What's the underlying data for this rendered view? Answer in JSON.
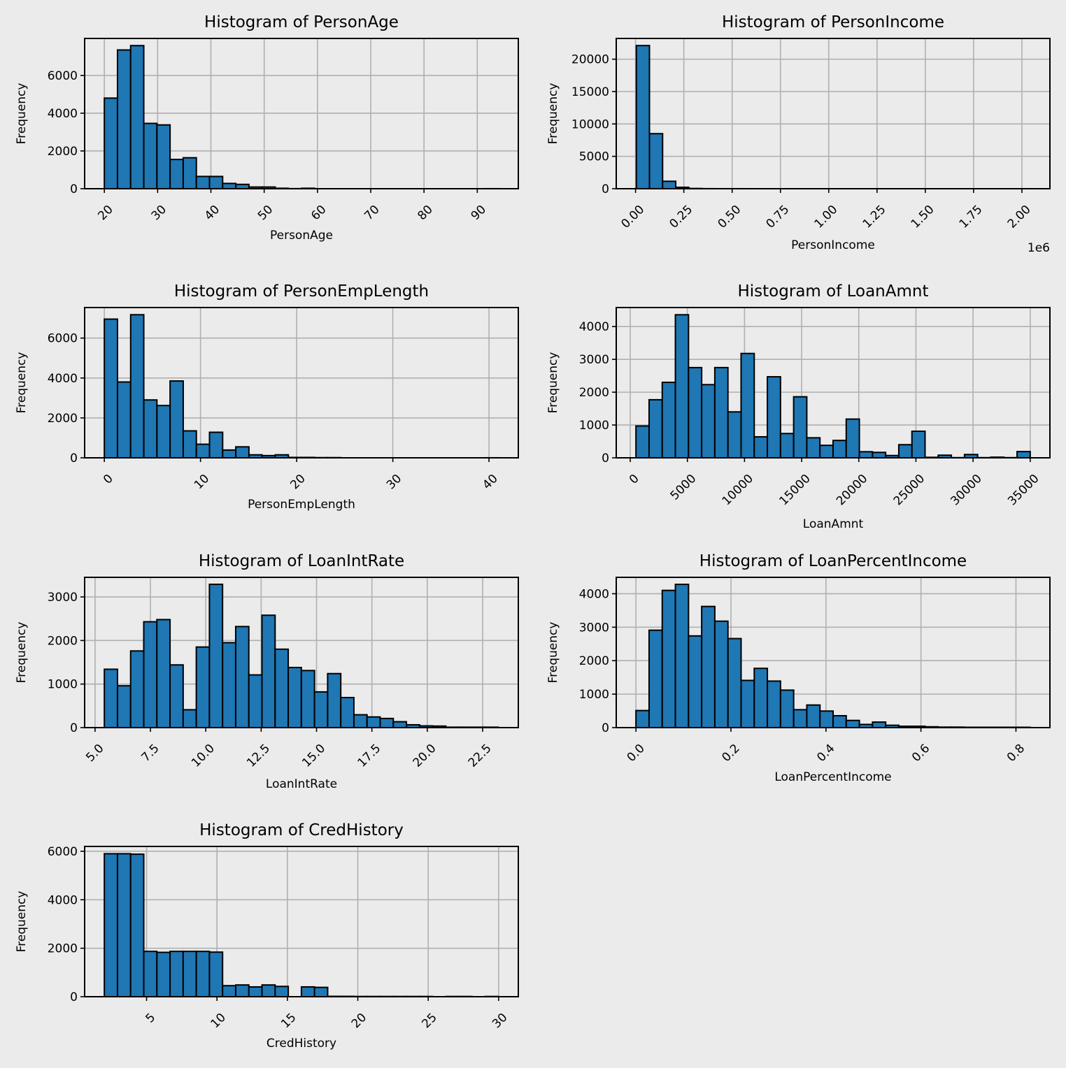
{
  "figure": {
    "background": "#ebebeb",
    "bar_color": "#1f77b4",
    "edge_color": "#000000",
    "grid_color": "#b0b0b0"
  },
  "chart_data": [
    {
      "type": "bar",
      "title": "Histogram of PersonAge",
      "xlabel": "PersonAge",
      "ylabel": "Frequency",
      "x_offset_label": "",
      "xlim": [
        16.3,
        97.7
      ],
      "ylim": [
        0,
        7960
      ],
      "xticks": [
        20,
        30,
        40,
        50,
        60,
        70,
        80,
        90
      ],
      "xtick_labels": [
        "20",
        "30",
        "40",
        "50",
        "60",
        "70",
        "80",
        "90"
      ],
      "yticks": [
        0,
        2000,
        4000,
        6000
      ],
      "ytick_labels": [
        "0",
        "2000",
        "4000",
        "6000"
      ],
      "bin_start": 20,
      "bin_width": 2.467,
      "values": [
        4800,
        7350,
        7580,
        3460,
        3380,
        1550,
        1640,
        650,
        650,
        280,
        230,
        90,
        90,
        25,
        5,
        25,
        0,
        0,
        0,
        0,
        0,
        0,
        0,
        0,
        0,
        0,
        0,
        0,
        0,
        3
      ],
      "grid": true
    },
    {
      "type": "bar",
      "title": "Histogram of PersonIncome",
      "xlabel": "PersonIncome",
      "ylabel": "Frequency",
      "x_offset_label": "1e6",
      "xlim": [
        -0.1,
        2.145
      ],
      "ylim": [
        0,
        23200
      ],
      "xticks": [
        0,
        0.25,
        0.5,
        0.75,
        1.0,
        1.25,
        1.5,
        1.75,
        2.0
      ],
      "xtick_labels": [
        "0.00",
        "0.25",
        "0.50",
        "0.75",
        "1.00",
        "1.25",
        "1.50",
        "1.75",
        "2.00"
      ],
      "yticks": [
        0,
        5000,
        10000,
        15000,
        20000
      ],
      "ytick_labels": [
        "0",
        "5000",
        "10000",
        "15000",
        "20000"
      ],
      "bin_start": 0.004,
      "bin_width": 0.068,
      "values": [
        22100,
        8500,
        1150,
        220,
        40,
        10,
        5,
        3,
        2,
        1,
        1,
        1,
        0,
        0,
        0,
        0,
        0,
        0,
        0,
        0,
        0,
        0,
        0,
        0,
        0,
        0,
        0,
        0,
        0,
        1
      ],
      "grid": true
    },
    {
      "type": "bar",
      "title": "Histogram of PersonEmpLength",
      "xlabel": "PersonEmpLength",
      "ylabel": "Frequency",
      "x_offset_label": "",
      "xlim": [
        -2.05,
        43.05
      ],
      "ylim": [
        0,
        7530
      ],
      "xticks": [
        0,
        10,
        20,
        30,
        40
      ],
      "xtick_labels": [
        "0",
        "10",
        "20",
        "30",
        "40"
      ],
      "yticks": [
        0,
        2000,
        4000,
        6000
      ],
      "ytick_labels": [
        "0",
        "2000",
        "4000",
        "6000"
      ],
      "bin_start": 0,
      "bin_width": 1.367,
      "values": [
        6950,
        3800,
        7170,
        2900,
        2620,
        3850,
        1350,
        680,
        1280,
        390,
        550,
        150,
        110,
        150,
        20,
        20,
        10,
        10,
        0,
        0,
        0,
        0,
        0,
        0,
        0,
        0,
        0,
        0,
        0,
        2
      ],
      "grid": true
    },
    {
      "type": "bar",
      "title": "Histogram of LoanAmnt",
      "xlabel": "LoanAmnt",
      "ylabel": "Frequency",
      "x_offset_label": "",
      "xlim": [
        -1225,
        36725
      ],
      "ylim": [
        0,
        4580
      ],
      "xticks": [
        0,
        5000,
        10000,
        15000,
        20000,
        25000,
        30000,
        35000
      ],
      "xtick_labels": [
        "0",
        "5000",
        "10000",
        "15000",
        "20000",
        "25000",
        "30000",
        "35000"
      ],
      "yticks": [
        0,
        1000,
        2000,
        3000,
        4000
      ],
      "ytick_labels": [
        "0",
        "1000",
        "2000",
        "3000",
        "4000"
      ],
      "bin_start": 500,
      "bin_width": 1150,
      "values": [
        970,
        1770,
        2300,
        4360,
        2750,
        2230,
        2750,
        1400,
        3180,
        640,
        2470,
        740,
        1860,
        610,
        380,
        530,
        1180,
        185,
        165,
        70,
        400,
        810,
        15,
        80,
        5,
        100,
        5,
        20,
        5,
        190
      ],
      "grid": true
    },
    {
      "type": "bar",
      "title": "Histogram of LoanIntRate",
      "xlabel": "LoanIntRate",
      "ylabel": "Frequency",
      "x_offset_label": "",
      "xlim": [
        4.53,
        24.11
      ],
      "ylim": [
        0,
        3450
      ],
      "xticks": [
        5.0,
        7.5,
        10.0,
        12.5,
        15.0,
        17.5,
        20.0,
        22.5
      ],
      "xtick_labels": [
        "5.0",
        "7.5",
        "10.0",
        "12.5",
        "15.0",
        "17.5",
        "20.0",
        "22.5"
      ],
      "yticks": [
        0,
        1000,
        2000,
        3000
      ],
      "ytick_labels": [
        "0",
        "1000",
        "2000",
        "3000"
      ],
      "bin_start": 5.42,
      "bin_width": 0.593,
      "values": [
        1340,
        960,
        1760,
        2430,
        2480,
        1440,
        410,
        1850,
        3290,
        1950,
        2320,
        1210,
        2580,
        1800,
        1380,
        1310,
        820,
        1240,
        690,
        295,
        245,
        210,
        135,
        65,
        40,
        35,
        10,
        10,
        10,
        10
      ],
      "grid": true
    },
    {
      "type": "bar",
      "title": "Histogram of LoanPercentIncome",
      "xlabel": "LoanPercentIncome",
      "ylabel": "Frequency",
      "x_offset_label": "",
      "xlim": [
        -0.0415,
        0.8715
      ],
      "ylim": [
        0,
        4490
      ],
      "xticks": [
        0.0,
        0.2,
        0.4,
        0.6,
        0.8
      ],
      "xtick_labels": [
        "0.0",
        "0.2",
        "0.4",
        "0.6",
        "0.8"
      ],
      "yticks": [
        0,
        1000,
        2000,
        3000,
        4000
      ],
      "ytick_labels": [
        "0",
        "1000",
        "2000",
        "3000",
        "4000"
      ],
      "bin_start": 0,
      "bin_width": 0.02767,
      "values": [
        510,
        2910,
        4100,
        4280,
        2740,
        3620,
        3180,
        2660,
        1410,
        1770,
        1390,
        1120,
        535,
        675,
        495,
        355,
        215,
        95,
        165,
        70,
        40,
        40,
        25,
        15,
        15,
        10,
        10,
        10,
        10,
        10
      ],
      "grid": true
    },
    {
      "type": "bar",
      "title": "Histogram of CredHistory",
      "xlabel": "CredHistory",
      "ylabel": "Frequency",
      "x_offset_label": "",
      "xlim": [
        0.6,
        31.4
      ],
      "ylim": [
        0,
        6200
      ],
      "xticks": [
        5,
        10,
        15,
        20,
        25,
        30
      ],
      "xtick_labels": [
        "5",
        "10",
        "15",
        "20",
        "25",
        "30"
      ],
      "yticks": [
        0,
        2000,
        4000,
        6000
      ],
      "ytick_labels": [
        "0",
        "2000",
        "4000",
        "6000"
      ],
      "bin_start": 2,
      "bin_width": 0.933,
      "values": [
        5900,
        5900,
        5880,
        1870,
        1830,
        1870,
        1870,
        1870,
        1840,
        455,
        485,
        405,
        485,
        425,
        0,
        405,
        385,
        15,
        15,
        10,
        10,
        10,
        10,
        10,
        10,
        0,
        10,
        10,
        0,
        10
      ],
      "grid": true
    }
  ]
}
